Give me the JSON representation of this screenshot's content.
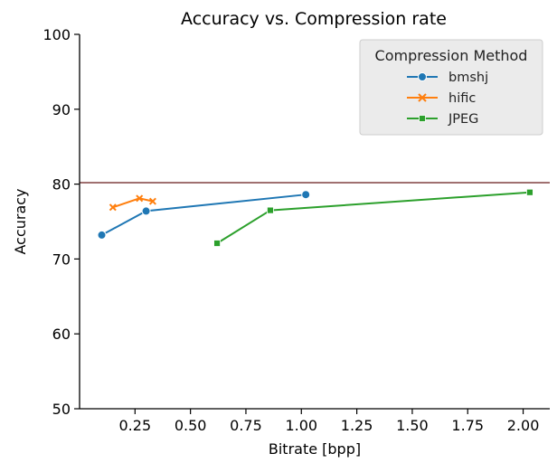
{
  "chart_data": {
    "type": "line",
    "title": "Accuracy vs. Compression rate",
    "xlabel": "Bitrate [bpp]",
    "ylabel": "Accuracy",
    "xlim": [
      0.0,
      2.12
    ],
    "ylim": [
      50,
      100
    ],
    "xticks": [
      "0.25",
      "0.50",
      "0.75",
      "1.00",
      "1.25",
      "1.50",
      "1.75",
      "2.00"
    ],
    "yticks": [
      "50",
      "60",
      "70",
      "80",
      "90",
      "100"
    ],
    "grid": false,
    "legend": {
      "title": "Compression Method",
      "placement": "top-right"
    },
    "reference_line": {
      "y": 80.2,
      "color": "#a07070"
    },
    "series": [
      {
        "name": "bmshj",
        "color": "#1f77b4",
        "marker": "circle",
        "x": [
          0.1,
          0.3,
          1.02
        ],
        "y": [
          73.2,
          76.4,
          78.6
        ]
      },
      {
        "name": "hific",
        "color": "#ff7f0e",
        "marker": "x",
        "x": [
          0.15,
          0.27,
          0.33
        ],
        "y": [
          76.9,
          78.1,
          77.7
        ]
      },
      {
        "name": "JPEG",
        "color": "#2ca02c",
        "marker": "square",
        "x": [
          0.62,
          0.86,
          2.03
        ],
        "y": [
          72.1,
          76.5,
          78.9
        ]
      }
    ]
  }
}
